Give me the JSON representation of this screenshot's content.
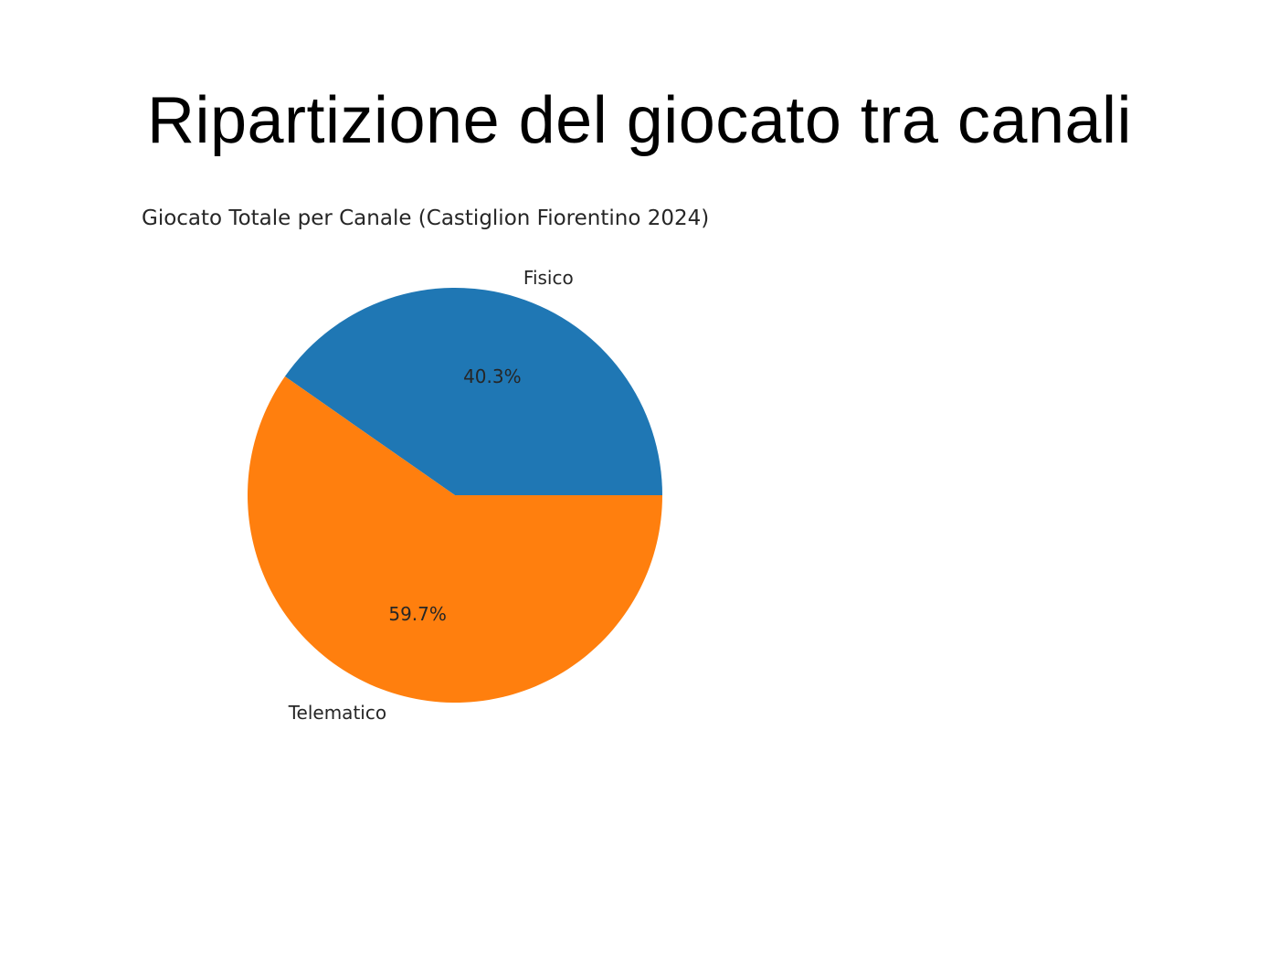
{
  "slide": {
    "title": "Ripartizione del giocato tra canali"
  },
  "chart_data": {
    "type": "pie",
    "title": "Giocato Totale per Canale (Castiglion Fiorentino 2024)",
    "categories": [
      "Fisico",
      "Telematico"
    ],
    "values": [
      40.3,
      59.7
    ],
    "value_labels": [
      "40.3%",
      "59.7%"
    ],
    "colors": [
      "#1f77b4",
      "#ff7f0e"
    ],
    "start_angle_deg": 0,
    "direction": "counterclockwise"
  }
}
